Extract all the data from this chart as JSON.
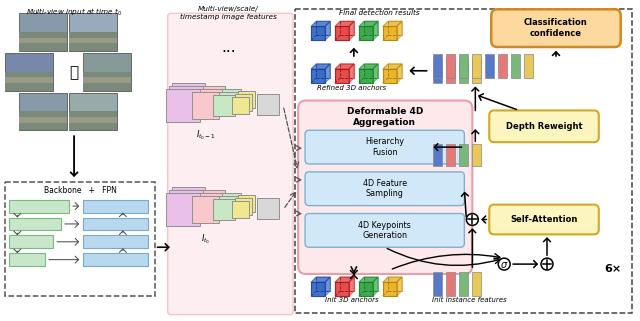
{
  "fig_width": 6.4,
  "fig_height": 3.21,
  "dpi": 100,
  "bg_color": "#ffffff",
  "section1_title": "Multi-view input at time $t_0$",
  "section2_title": "Multi-view/scale/\ntimestamp image features",
  "section3_title": "Final detection results",
  "section4_title": "Classification\nconfidence",
  "backbone_fpn_label": "Backbone   +   FPN",
  "deformable_title": "Deformable 4D\nAggregation",
  "hierarchy_label": "Hierarchy\nFusion",
  "feature_sampling_label": "4D Feature\nSampling",
  "keypoints_label": "4D Keypoints\nGeneration",
  "depth_reweight_label": "Depth Reweight",
  "self_attention_label": "Self-Attention",
  "init_anchors_label": "Init 3D anchors",
  "refined_anchors_label": "Refined 3D anchors",
  "init_instance_label": "Init instance features",
  "repeat_label": "6×",
  "green_box": "#c8e6c9",
  "green_border": "#7cb97e",
  "blue_box": "#b8d8f0",
  "blue_border": "#7aaac8",
  "pink_bg": "#fde8ec",
  "pink_border": "#e8a0a8",
  "yellow_box": "#fdf5c0",
  "yellow_border": "#d4a820",
  "orange_box": "#fdd9a0",
  "orange_border": "#d48820",
  "light_blue_inner": "#d0e8f8",
  "light_blue_inner_border": "#80b0d0",
  "cube_blue": "#3060c0",
  "cube_blue_ec": "#1040a0",
  "cube_red": "#e04040",
  "cube_red_ec": "#b01010",
  "cube_green": "#30a040",
  "cube_green_ec": "#108020",
  "cube_yellow": "#e8b020",
  "cube_yellow_ec": "#b08000",
  "bar_blue": "#5878c8",
  "bar_pink": "#e87878",
  "bar_green": "#78b878",
  "bar_yellow": "#e8c858"
}
